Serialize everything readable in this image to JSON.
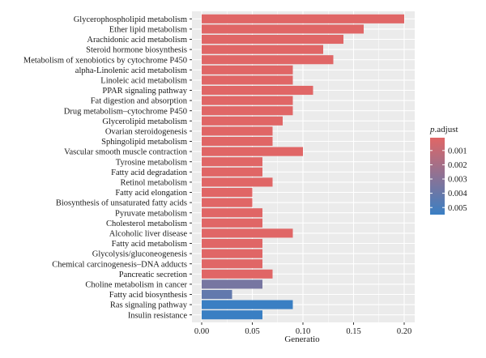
{
  "chart_data": {
    "type": "bar",
    "orientation": "horizontal",
    "categories": [
      "Glycerophospholipid metabolism",
      "Ether lipid metabolism",
      "Arachidonic acid metabolism",
      "Steroid hormone biosynthesis",
      "Metabolism of xenobiotics by cytochrome P450",
      "alpha-Linolenic acid metabolism",
      "Linoleic acid metabolism",
      "PPAR signaling pathway",
      "Fat digestion and absorption",
      "Drug metabolism–cytochrome P450",
      "Glycerolipid metabolism",
      "Ovarian steroidogenesis",
      "Sphingolipid metabolism",
      "Vascular smooth muscle contraction",
      "Tyrosine metabolism",
      "Fatty acid degradation",
      "Retinol metabolism",
      "Fatty acid elongation",
      "Biosynthesis of unsaturated fatty acids",
      "Pyruvate metabolism",
      "Cholesterol metabolism",
      "Alcoholic liver disease",
      "Fatty acid metabolism",
      "Glycolysis/gluconeogenesis",
      "Chemical carcinogenesis–DNA adducts",
      "Pancreatic secretion",
      "Choline metabolism in cancer",
      "Fatty acid biosynthesis",
      "Ras signaling pathway",
      "Insulin resistance"
    ],
    "values": [
      0.2,
      0.16,
      0.14,
      0.12,
      0.13,
      0.09,
      0.09,
      0.11,
      0.09,
      0.09,
      0.08,
      0.07,
      0.07,
      0.1,
      0.06,
      0.06,
      0.07,
      0.05,
      0.05,
      0.06,
      0.06,
      0.09,
      0.06,
      0.06,
      0.06,
      0.07,
      0.06,
      0.03,
      0.09,
      0.06
    ],
    "p_adjust": [
      0.0001,
      0.0001,
      0.0001,
      0.0001,
      0.0001,
      0.0001,
      0.0001,
      0.0001,
      0.0001,
      0.0001,
      0.0001,
      0.0001,
      0.0001,
      0.0001,
      0.0001,
      0.0001,
      0.0001,
      0.0001,
      0.0001,
      0.0001,
      0.0001,
      0.0001,
      0.0001,
      0.0001,
      0.0001,
      0.0001,
      0.0035,
      0.0042,
      0.0055,
      0.0055
    ],
    "xlabel": "Generatio",
    "xlim": [
      0,
      0.205
    ],
    "xticks": [
      0,
      0.05,
      0.1,
      0.15,
      0.2
    ],
    "xtick_labels": [
      "0.00",
      "0.05",
      "0.10",
      "0.15",
      "0.20"
    ],
    "grid": true,
    "legend": {
      "title_italic": "p",
      "title_rest": ".adjust",
      "placement": "right",
      "ticks": [
        0.001,
        0.002,
        0.003,
        0.004,
        0.005
      ],
      "tick_labels": [
        "0.001",
        "0.002",
        "0.003",
        "0.004",
        "0.005"
      ],
      "range": [
        0.0001,
        0.0055
      ],
      "color_low": "#e06666",
      "color_high": "#3a7fc3"
    },
    "colors": {
      "panel_bg": "#ebebeb",
      "grid": "#ffffff"
    }
  }
}
